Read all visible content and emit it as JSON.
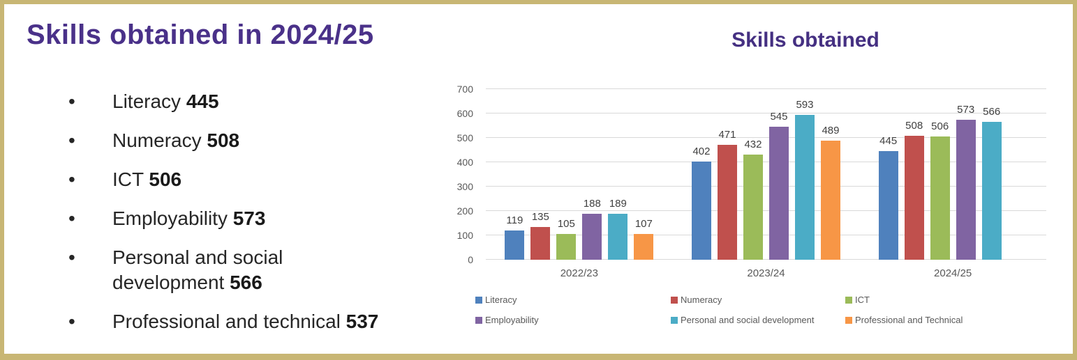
{
  "colors": {
    "border": "#C8B674",
    "panel_title": "#4A3189",
    "chart_title": "#453082",
    "body_text": "#262626",
    "axis_text": "#595959",
    "gridline": "#D9D9D9",
    "data_label": "#404040"
  },
  "left_panel": {
    "title": "Skills obtained in 2024/25",
    "bullet_glyph": "•",
    "items": [
      {
        "label": "Literacy",
        "value": "445"
      },
      {
        "label": "Numeracy",
        "value": "508"
      },
      {
        "label": "ICT",
        "value": "506"
      },
      {
        "label": "Employability",
        "value": "573"
      },
      {
        "label": "Personal and social\ndevelopment",
        "value": "566"
      },
      {
        "label": "Professional and technical",
        "value": "537"
      }
    ]
  },
  "chart_data": {
    "type": "bar",
    "title": "Skills obtained",
    "categories": [
      "2022/23",
      "2023/24",
      "2024/25"
    ],
    "series": [
      {
        "name": "Literacy",
        "color": "#4F81BD",
        "values": [
          119,
          402,
          445
        ]
      },
      {
        "name": "Numeracy",
        "color": "#C0504D",
        "values": [
          135,
          471,
          508
        ]
      },
      {
        "name": "ICT",
        "color": "#9BBB59",
        "values": [
          105,
          432,
          506
        ]
      },
      {
        "name": "Employability",
        "color": "#8064A2",
        "values": [
          188,
          545,
          573
        ]
      },
      {
        "name": "Personal and social development",
        "color": "#4BACC6",
        "values": [
          189,
          593,
          566
        ]
      },
      {
        "name": "Professional and Technical",
        "color": "#F79646",
        "values": [
          107,
          489,
          null
        ]
      }
    ],
    "ylim": [
      0,
      700
    ],
    "ytick_step": 100,
    "grid": true,
    "legend_position": "bottom"
  }
}
